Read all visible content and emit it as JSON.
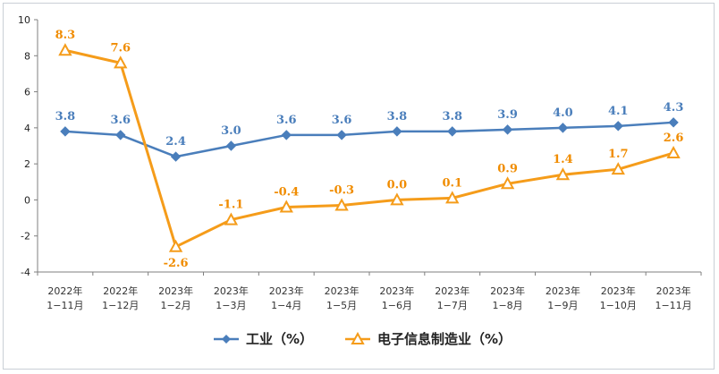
{
  "chart_data": {
    "type": "line",
    "categories": [
      [
        "2022年",
        "1−11月"
      ],
      [
        "2022年",
        "1−12月"
      ],
      [
        "2023年",
        "1−2月"
      ],
      [
        "2023年",
        "1−3月"
      ],
      [
        "2023年",
        "1−4月"
      ],
      [
        "2023年",
        "1−5月"
      ],
      [
        "2023年",
        "1−6月"
      ],
      [
        "2023年",
        "1−7月"
      ],
      [
        "2023年",
        "1−8月"
      ],
      [
        "2023年",
        "1−9月"
      ],
      [
        "2023年",
        "1−10月"
      ],
      [
        "2023年",
        "1−11月"
      ]
    ],
    "series": [
      {
        "name": "工业（%）",
        "color": "#4a7ebb",
        "marker": "diamond",
        "values": [
          3.8,
          3.6,
          2.4,
          3.0,
          3.6,
          3.6,
          3.8,
          3.8,
          3.9,
          4.0,
          4.1,
          4.3
        ],
        "labels": [
          "3.8",
          "3.6",
          "2.4",
          "3.0",
          "3.6",
          "3.6",
          "3.8",
          "3.8",
          "3.9",
          "4.0",
          "4.1",
          "4.3"
        ]
      },
      {
        "name": "电子信息制造业（%）",
        "color": "#f59c1a",
        "marker": "triangle",
        "values": [
          8.3,
          7.6,
          -2.6,
          -1.1,
          -0.4,
          -0.3,
          0.0,
          0.1,
          0.9,
          1.4,
          1.7,
          2.6
        ],
        "labels": [
          "8.3",
          "7.6",
          "-2.6",
          "-1.1",
          "-0.4",
          "-0.3",
          "0.0",
          "0.1",
          "0.9",
          "1.4",
          "1.7",
          "2.6"
        ]
      }
    ],
    "ylim": [
      -4,
      10
    ],
    "yticks": [
      -4,
      -2,
      0,
      2,
      4,
      6,
      8,
      10
    ],
    "grid": false,
    "legend_position": "bottom-center",
    "title": "",
    "xlabel": "",
    "ylabel": ""
  }
}
